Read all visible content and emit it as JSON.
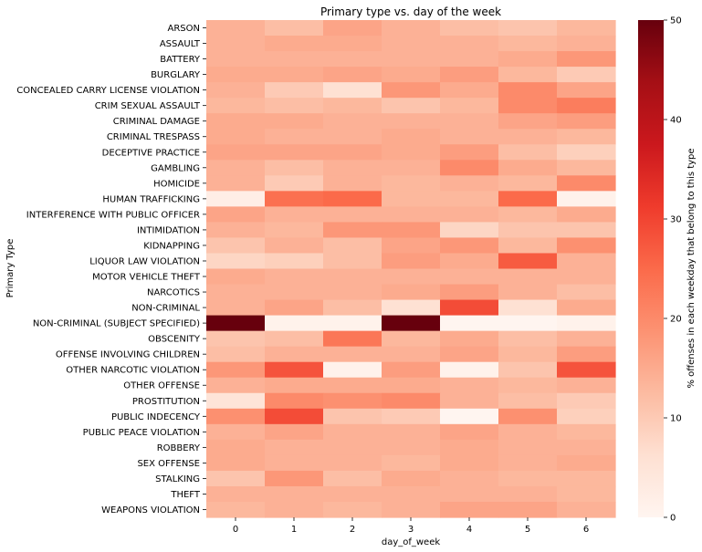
{
  "chart_data": {
    "type": "heatmap",
    "title": "Primary type vs. day of the week",
    "xlabel": "day_of_week",
    "ylabel": "Primary Type",
    "x_categories": [
      "0",
      "1",
      "2",
      "3",
      "4",
      "5",
      "6"
    ],
    "y_categories": [
      "ARSON",
      "ASSAULT",
      "BATTERY",
      "BURGLARY",
      "CONCEALED CARRY LICENSE VIOLATION",
      "CRIM SEXUAL ASSAULT",
      "CRIMINAL DAMAGE",
      "CRIMINAL TRESPASS",
      "DECEPTIVE PRACTICE",
      "GAMBLING",
      "HOMICIDE",
      "HUMAN TRAFFICKING",
      "INTERFERENCE WITH PUBLIC OFFICER",
      "INTIMIDATION",
      "KIDNAPPING",
      "LIQUOR LAW VIOLATION",
      "MOTOR VEHICLE THEFT",
      "NARCOTICS",
      "NON-CRIMINAL",
      "NON-CRIMINAL (SUBJECT SPECIFIED)",
      "OBSCENITY",
      "OFFENSE INVOLVING CHILDREN",
      "OTHER NARCOTIC VIOLATION",
      "OTHER OFFENSE",
      "PROSTITUTION",
      "PUBLIC INDECENCY",
      "PUBLIC PEACE VIOLATION",
      "ROBBERY",
      "SEX OFFENSE",
      "STALKING",
      "THEFT",
      "WEAPONS VIOLATION"
    ],
    "values": [
      [
        14,
        12,
        16,
        14,
        12,
        11,
        13
      ],
      [
        14,
        15,
        15,
        14,
        14,
        13,
        14
      ],
      [
        14,
        14,
        14,
        14,
        14,
        15,
        18
      ],
      [
        15,
        15,
        16,
        15,
        17,
        13,
        10
      ],
      [
        14,
        10,
        6,
        18,
        15,
        20,
        16
      ],
      [
        13,
        12,
        13,
        11,
        13,
        20,
        22
      ],
      [
        15,
        15,
        14,
        14,
        14,
        16,
        17
      ],
      [
        15,
        14,
        14,
        15,
        14,
        14,
        13
      ],
      [
        16,
        16,
        16,
        15,
        17,
        12,
        9
      ],
      [
        14,
        12,
        14,
        14,
        20,
        15,
        13
      ],
      [
        14,
        10,
        14,
        13,
        14,
        13,
        20
      ],
      [
        2,
        24,
        25,
        13,
        13,
        25,
        1
      ],
      [
        16,
        14,
        14,
        14,
        14,
        13,
        15
      ],
      [
        14,
        13,
        18,
        18,
        8,
        11,
        11
      ],
      [
        11,
        14,
        12,
        16,
        18,
        13,
        19
      ],
      [
        8,
        9,
        12,
        17,
        15,
        27,
        14
      ],
      [
        15,
        14,
        14,
        14,
        14,
        14,
        14
      ],
      [
        14,
        14,
        14,
        15,
        17,
        14,
        12
      ],
      [
        14,
        16,
        12,
        6,
        29,
        6,
        15
      ],
      [
        50,
        1,
        1,
        50,
        0,
        0,
        1
      ],
      [
        11,
        12,
        23,
        13,
        15,
        12,
        14
      ],
      [
        12,
        14,
        14,
        14,
        16,
        13,
        17
      ],
      [
        18,
        28,
        1,
        17,
        1,
        11,
        28
      ],
      [
        14,
        15,
        15,
        15,
        14,
        13,
        14
      ],
      [
        5,
        20,
        19,
        20,
        14,
        12,
        10
      ],
      [
        19,
        29,
        11,
        10,
        0,
        19,
        9
      ],
      [
        14,
        16,
        14,
        14,
        16,
        14,
        13
      ],
      [
        15,
        14,
        14,
        14,
        15,
        14,
        14
      ],
      [
        15,
        14,
        14,
        13,
        15,
        14,
        15
      ],
      [
        11,
        18,
        12,
        15,
        14,
        13,
        13
      ],
      [
        14,
        14,
        14,
        14,
        14,
        14,
        13
      ],
      [
        13,
        14,
        13,
        14,
        16,
        16,
        14
      ]
    ],
    "vmin": 0,
    "vmax": 50,
    "colormap": "Reds",
    "colorbar": {
      "label": "% offenses in each weekday that belong to this type",
      "ticks": [
        0,
        10,
        20,
        30,
        40,
        50
      ]
    },
    "grid": false,
    "legend": "colorbar-right"
  }
}
